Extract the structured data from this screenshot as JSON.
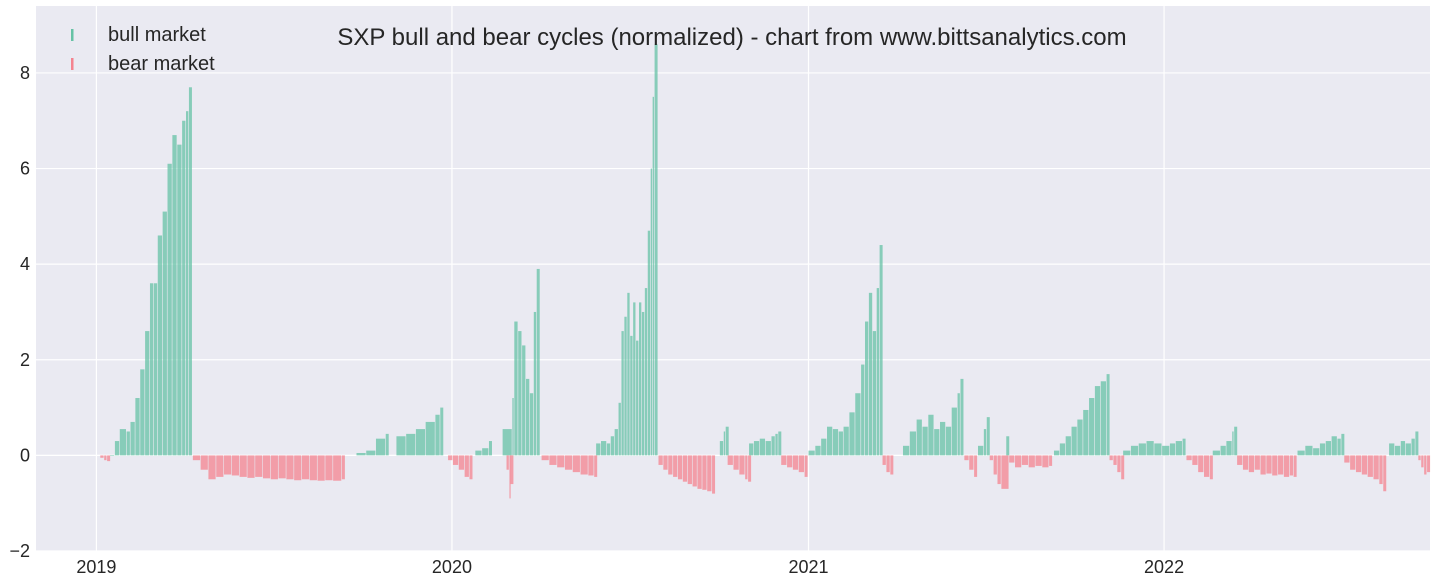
{
  "chart_data": {
    "type": "bar",
    "title": "SXP bull and bear cycles (normalized)  - chart from www.bittsanalytics.com",
    "xlabel": "",
    "ylabel": "",
    "xlim": [
      "2018-10-31",
      "2022-10-01"
    ],
    "ylim": [
      -2,
      9.4
    ],
    "grid": true,
    "legend_placement": "top-left",
    "x_ticks": [
      {
        "date": "2019-01-01",
        "label": "2019"
      },
      {
        "date": "2020-01-01",
        "label": "2020"
      },
      {
        "date": "2021-01-01",
        "label": "2021"
      },
      {
        "date": "2022-01-01",
        "label": "2022"
      }
    ],
    "y_ticks": [
      {
        "value": -2,
        "label": "−2"
      },
      {
        "value": 0,
        "label": "0"
      },
      {
        "value": 2,
        "label": "2"
      },
      {
        "value": 4,
        "label": "4"
      },
      {
        "value": 6,
        "label": "6"
      },
      {
        "value": 8,
        "label": "8"
      }
    ],
    "colors": {
      "bull": "#66c2a5",
      "bear": "#f4838f",
      "background": "#eaeaf2",
      "grid": "#ffffff"
    },
    "series": [
      {
        "name": "bull market",
        "color": "#66c2a5",
        "points": [
          [
            "2019-01-15",
            0.0
          ],
          [
            "2019-01-20",
            0.3
          ],
          [
            "2019-01-25",
            0.55
          ],
          [
            "2019-02-01",
            0.5
          ],
          [
            "2019-02-05",
            0.7
          ],
          [
            "2019-02-10",
            1.2
          ],
          [
            "2019-02-15",
            1.8
          ],
          [
            "2019-02-20",
            2.6
          ],
          [
            "2019-02-25",
            3.6
          ],
          [
            "2019-03-01",
            3.6
          ],
          [
            "2019-03-05",
            4.6
          ],
          [
            "2019-03-10",
            5.1
          ],
          [
            "2019-03-15",
            6.1
          ],
          [
            "2019-03-20",
            6.7
          ],
          [
            "2019-03-25",
            6.5
          ],
          [
            "2019-03-30",
            7.0
          ],
          [
            "2019-04-03",
            7.2
          ],
          [
            "2019-04-06",
            7.7
          ],
          [
            "2019-09-25",
            0.05
          ],
          [
            "2019-10-05",
            0.1
          ],
          [
            "2019-10-15",
            0.35
          ],
          [
            "2019-10-25",
            0.45
          ],
          [
            "2019-11-05",
            0.4
          ],
          [
            "2019-11-15",
            0.45
          ],
          [
            "2019-11-25",
            0.55
          ],
          [
            "2019-12-05",
            0.7
          ],
          [
            "2019-12-15",
            0.85
          ],
          [
            "2019-12-20",
            1.0
          ],
          [
            "2020-01-25",
            0.1
          ],
          [
            "2020-02-01",
            0.15
          ],
          [
            "2020-02-08",
            0.3
          ],
          [
            "2020-02-22",
            0.55
          ],
          [
            "2020-03-03",
            1.2
          ],
          [
            "2020-03-05",
            2.8
          ],
          [
            "2020-03-09",
            2.6
          ],
          [
            "2020-03-13",
            2.3
          ],
          [
            "2020-03-17",
            1.6
          ],
          [
            "2020-03-21",
            1.3
          ],
          [
            "2020-03-25",
            3.0
          ],
          [
            "2020-03-28",
            3.9
          ],
          [
            "2020-05-28",
            0.25
          ],
          [
            "2020-06-02",
            0.3
          ],
          [
            "2020-06-08",
            0.25
          ],
          [
            "2020-06-12",
            0.4
          ],
          [
            "2020-06-16",
            0.55
          ],
          [
            "2020-06-20",
            1.1
          ],
          [
            "2020-06-23",
            2.6
          ],
          [
            "2020-06-26",
            2.9
          ],
          [
            "2020-06-29",
            3.4
          ],
          [
            "2020-07-02",
            2.5
          ],
          [
            "2020-07-05",
            3.2
          ],
          [
            "2020-07-08",
            2.4
          ],
          [
            "2020-07-11",
            3.2
          ],
          [
            "2020-07-14",
            3.0
          ],
          [
            "2020-07-17",
            3.5
          ],
          [
            "2020-07-20",
            4.7
          ],
          [
            "2020-07-23",
            6.0
          ],
          [
            "2020-07-25",
            7.5
          ],
          [
            "2020-07-27",
            8.6
          ],
          [
            "2020-10-02",
            0.3
          ],
          [
            "2020-10-06",
            0.5
          ],
          [
            "2020-10-08",
            0.6
          ],
          [
            "2020-11-01",
            0.25
          ],
          [
            "2020-11-06",
            0.3
          ],
          [
            "2020-11-12",
            0.35
          ],
          [
            "2020-11-18",
            0.3
          ],
          [
            "2020-11-24",
            0.4
          ],
          [
            "2020-11-28",
            0.45
          ],
          [
            "2020-12-01",
            0.5
          ],
          [
            "2021-01-01",
            0.1
          ],
          [
            "2021-01-08",
            0.2
          ],
          [
            "2021-01-14",
            0.35
          ],
          [
            "2021-01-20",
            0.6
          ],
          [
            "2021-01-26",
            0.55
          ],
          [
            "2021-02-01",
            0.5
          ],
          [
            "2021-02-06",
            0.6
          ],
          [
            "2021-02-12",
            0.9
          ],
          [
            "2021-02-18",
            1.3
          ],
          [
            "2021-02-24",
            1.9
          ],
          [
            "2021-02-28",
            2.8
          ],
          [
            "2021-03-04",
            3.4
          ],
          [
            "2021-03-08",
            2.6
          ],
          [
            "2021-03-12",
            3.5
          ],
          [
            "2021-03-15",
            4.4
          ],
          [
            "2021-04-08",
            0.2
          ],
          [
            "2021-04-15",
            0.5
          ],
          [
            "2021-04-22",
            0.75
          ],
          [
            "2021-04-28",
            0.6
          ],
          [
            "2021-05-04",
            0.85
          ],
          [
            "2021-05-10",
            0.55
          ],
          [
            "2021-05-16",
            0.7
          ],
          [
            "2021-05-22",
            0.6
          ],
          [
            "2021-05-28",
            1.0
          ],
          [
            "2021-06-03",
            1.3
          ],
          [
            "2021-06-06",
            1.6
          ],
          [
            "2021-06-24",
            0.2
          ],
          [
            "2021-06-30",
            0.55
          ],
          [
            "2021-07-03",
            0.8
          ],
          [
            "2021-07-23",
            0.4
          ],
          [
            "2021-09-10",
            0.1
          ],
          [
            "2021-09-16",
            0.25
          ],
          [
            "2021-09-22",
            0.4
          ],
          [
            "2021-09-28",
            0.6
          ],
          [
            "2021-10-04",
            0.75
          ],
          [
            "2021-10-10",
            0.95
          ],
          [
            "2021-10-16",
            1.2
          ],
          [
            "2021-10-22",
            1.45
          ],
          [
            "2021-10-28",
            1.55
          ],
          [
            "2021-11-03",
            1.7
          ],
          [
            "2021-11-20",
            0.1
          ],
          [
            "2021-11-28",
            0.2
          ],
          [
            "2021-12-06",
            0.25
          ],
          [
            "2021-12-14",
            0.3
          ],
          [
            "2021-12-22",
            0.25
          ],
          [
            "2021-12-30",
            0.2
          ],
          [
            "2022-01-07",
            0.25
          ],
          [
            "2022-01-13",
            0.3
          ],
          [
            "2022-01-20",
            0.35
          ],
          [
            "2022-02-20",
            0.1
          ],
          [
            "2022-02-28",
            0.2
          ],
          [
            "2022-03-06",
            0.3
          ],
          [
            "2022-03-12",
            0.5
          ],
          [
            "2022-03-14",
            0.6
          ],
          [
            "2022-05-18",
            0.1
          ],
          [
            "2022-05-26",
            0.2
          ],
          [
            "2022-06-03",
            0.15
          ],
          [
            "2022-06-10",
            0.25
          ],
          [
            "2022-06-16",
            0.3
          ],
          [
            "2022-06-22",
            0.4
          ],
          [
            "2022-06-28",
            0.35
          ],
          [
            "2022-07-02",
            0.45
          ],
          [
            "2022-08-20",
            0.25
          ],
          [
            "2022-08-26",
            0.2
          ],
          [
            "2022-09-01",
            0.3
          ],
          [
            "2022-09-06",
            0.25
          ],
          [
            "2022-09-12",
            0.35
          ],
          [
            "2022-09-16",
            0.5
          ]
        ]
      },
      {
        "name": "bear market",
        "color": "#f4838f",
        "points": [
          [
            "2019-01-05",
            -0.05
          ],
          [
            "2019-01-09",
            -0.1
          ],
          [
            "2019-01-12",
            -0.12
          ],
          [
            "2019-04-10",
            -0.1
          ],
          [
            "2019-04-18",
            -0.3
          ],
          [
            "2019-04-26",
            -0.5
          ],
          [
            "2019-05-04",
            -0.45
          ],
          [
            "2019-05-12",
            -0.4
          ],
          [
            "2019-05-20",
            -0.42
          ],
          [
            "2019-05-28",
            -0.45
          ],
          [
            "2019-06-05",
            -0.47
          ],
          [
            "2019-06-13",
            -0.45
          ],
          [
            "2019-06-21",
            -0.48
          ],
          [
            "2019-06-29",
            -0.5
          ],
          [
            "2019-07-07",
            -0.48
          ],
          [
            "2019-07-15",
            -0.5
          ],
          [
            "2019-07-23",
            -0.52
          ],
          [
            "2019-07-31",
            -0.5
          ],
          [
            "2019-08-08",
            -0.52
          ],
          [
            "2019-08-16",
            -0.53
          ],
          [
            "2019-08-24",
            -0.52
          ],
          [
            "2019-09-01",
            -0.53
          ],
          [
            "2019-09-10",
            -0.5
          ],
          [
            "2019-12-28",
            -0.1
          ],
          [
            "2020-01-02",
            -0.2
          ],
          [
            "2020-01-08",
            -0.3
          ],
          [
            "2020-01-14",
            -0.45
          ],
          [
            "2020-01-19",
            -0.5
          ],
          [
            "2020-02-26",
            -0.3
          ],
          [
            "2020-02-29",
            -0.9
          ],
          [
            "2020-03-01",
            -0.6
          ],
          [
            "2020-04-02",
            -0.1
          ],
          [
            "2020-04-10",
            -0.2
          ],
          [
            "2020-04-18",
            -0.25
          ],
          [
            "2020-04-26",
            -0.3
          ],
          [
            "2020-05-04",
            -0.35
          ],
          [
            "2020-05-12",
            -0.4
          ],
          [
            "2020-05-20",
            -0.42
          ],
          [
            "2020-05-26",
            -0.45
          ],
          [
            "2020-07-31",
            -0.2
          ],
          [
            "2020-08-05",
            -0.3
          ],
          [
            "2020-08-10",
            -0.4
          ],
          [
            "2020-08-15",
            -0.45
          ],
          [
            "2020-08-20",
            -0.5
          ],
          [
            "2020-08-25",
            -0.55
          ],
          [
            "2020-08-30",
            -0.6
          ],
          [
            "2020-09-04",
            -0.65
          ],
          [
            "2020-09-09",
            -0.7
          ],
          [
            "2020-09-14",
            -0.72
          ],
          [
            "2020-09-19",
            -0.75
          ],
          [
            "2020-09-24",
            -0.8
          ],
          [
            "2020-10-10",
            -0.2
          ],
          [
            "2020-10-16",
            -0.3
          ],
          [
            "2020-10-22",
            -0.4
          ],
          [
            "2020-10-28",
            -0.5
          ],
          [
            "2020-10-31",
            -0.55
          ],
          [
            "2020-12-04",
            -0.2
          ],
          [
            "2020-12-10",
            -0.25
          ],
          [
            "2020-12-16",
            -0.3
          ],
          [
            "2020-12-22",
            -0.35
          ],
          [
            "2020-12-28",
            -0.45
          ],
          [
            "2021-03-18",
            -0.2
          ],
          [
            "2021-03-22",
            -0.35
          ],
          [
            "2021-03-26",
            -0.4
          ],
          [
            "2021-06-10",
            -0.1
          ],
          [
            "2021-06-15",
            -0.3
          ],
          [
            "2021-06-20",
            -0.45
          ],
          [
            "2021-07-06",
            -0.1
          ],
          [
            "2021-07-10",
            -0.4
          ],
          [
            "2021-07-14",
            -0.6
          ],
          [
            "2021-07-18",
            -0.7
          ],
          [
            "2021-07-26",
            -0.15
          ],
          [
            "2021-08-01",
            -0.25
          ],
          [
            "2021-08-08",
            -0.2
          ],
          [
            "2021-08-15",
            -0.25
          ],
          [
            "2021-08-22",
            -0.22
          ],
          [
            "2021-08-29",
            -0.25
          ],
          [
            "2021-09-05",
            -0.22
          ],
          [
            "2021-11-06",
            -0.1
          ],
          [
            "2021-11-10",
            -0.2
          ],
          [
            "2021-11-14",
            -0.35
          ],
          [
            "2021-11-18",
            -0.5
          ],
          [
            "2022-01-24",
            -0.1
          ],
          [
            "2022-01-30",
            -0.2
          ],
          [
            "2022-02-05",
            -0.35
          ],
          [
            "2022-02-11",
            -0.45
          ],
          [
            "2022-02-17",
            -0.5
          ],
          [
            "2022-03-17",
            -0.2
          ],
          [
            "2022-03-23",
            -0.3
          ],
          [
            "2022-03-29",
            -0.35
          ],
          [
            "2022-04-04",
            -0.3
          ],
          [
            "2022-04-10",
            -0.4
          ],
          [
            "2022-04-16",
            -0.38
          ],
          [
            "2022-04-22",
            -0.42
          ],
          [
            "2022-04-28",
            -0.4
          ],
          [
            "2022-05-04",
            -0.45
          ],
          [
            "2022-05-10",
            -0.42
          ],
          [
            "2022-05-14",
            -0.45
          ],
          [
            "2022-07-05",
            -0.15
          ],
          [
            "2022-07-11",
            -0.3
          ],
          [
            "2022-07-17",
            -0.35
          ],
          [
            "2022-07-23",
            -0.4
          ],
          [
            "2022-07-29",
            -0.45
          ],
          [
            "2022-08-04",
            -0.5
          ],
          [
            "2022-08-10",
            -0.6
          ],
          [
            "2022-08-14",
            -0.75
          ],
          [
            "2022-09-19",
            -0.1
          ],
          [
            "2022-09-22",
            -0.25
          ],
          [
            "2022-09-25",
            -0.4
          ],
          [
            "2022-09-28",
            -0.35
          ]
        ]
      }
    ]
  }
}
